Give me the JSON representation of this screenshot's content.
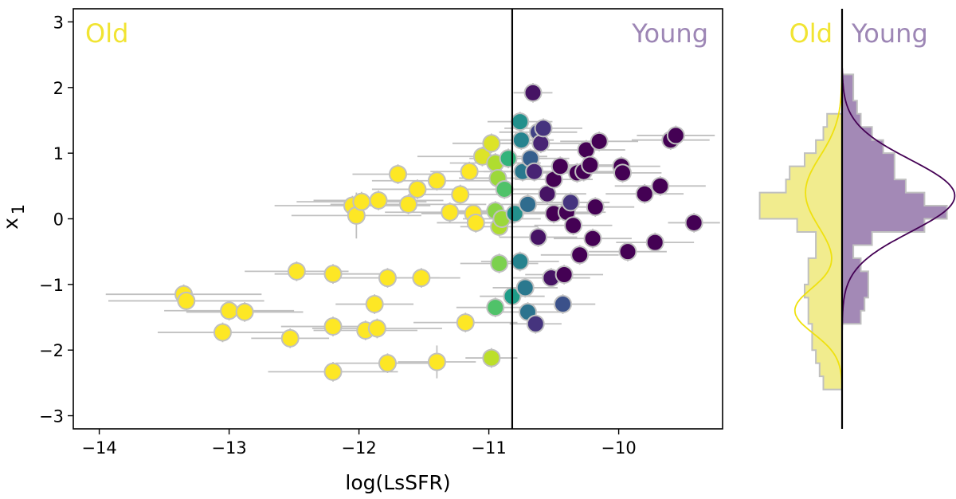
{
  "chart_data": [
    {
      "type": "scatter",
      "title": "",
      "xlabel": "log(LsSFR)",
      "ylabel": "x1",
      "xlim": [
        -14.2,
        -9.2
      ],
      "ylim": [
        -3.2,
        3.2
      ],
      "xticks": [
        -14,
        -13,
        -12,
        -11,
        -10
      ],
      "xtick_labels": [
        "−14",
        "−13",
        "−12",
        "−11",
        "−10"
      ],
      "yticks": [
        3,
        2,
        1,
        0,
        -1,
        -2,
        -3
      ],
      "ytick_labels": [
        "3",
        "2",
        "1",
        "0",
        "−1",
        "−2",
        "−3"
      ],
      "grid": false,
      "threshold_x": -10.82,
      "annotations": {
        "left": "Old",
        "right": "Young"
      },
      "colors": {
        "old": "#f1e432",
        "young": "#9d86b5",
        "young_dark": "#440154",
        "marker_edge": "#c0c0c0",
        "errorbar": "#c0c0c0",
        "colormap": [
          "#fde725",
          "#b5de2b",
          "#6ece58",
          "#35b779",
          "#1f9e89",
          "#26828e",
          "#31688e",
          "#3e4989",
          "#482878",
          "#440154"
        ]
      },
      "points": [
        {
          "x": -13.35,
          "y": -1.15,
          "c": 0.0,
          "xerr": 0.6,
          "yerr": 0.15
        },
        {
          "x": -13.33,
          "y": -1.25,
          "c": 0.0,
          "xerr": 0.6,
          "yerr": 0.15
        },
        {
          "x": -13.05,
          "y": -1.73,
          "c": 0.0,
          "xerr": 0.5,
          "yerr": 0.15
        },
        {
          "x": -13.0,
          "y": -1.4,
          "c": 0.0,
          "xerr": 0.5,
          "yerr": 0.15
        },
        {
          "x": -12.88,
          "y": -1.42,
          "c": 0.0,
          "xerr": 0.45,
          "yerr": 0.15
        },
        {
          "x": -12.53,
          "y": -1.82,
          "c": 0.0,
          "xerr": 0.3,
          "yerr": 0.15
        },
        {
          "x": -12.48,
          "y": -0.8,
          "c": 0.0,
          "xerr": 0.4,
          "yerr": 0.15
        },
        {
          "x": -12.2,
          "y": -0.84,
          "c": 0.0,
          "xerr": 0.45,
          "yerr": 0.15
        },
        {
          "x": -12.2,
          "y": -1.64,
          "c": 0.0,
          "xerr": 0.4,
          "yerr": 0.15
        },
        {
          "x": -12.2,
          "y": -2.33,
          "c": 0.0,
          "xerr": 0.5,
          "yerr": 0.15
        },
        {
          "x": -12.05,
          "y": 0.2,
          "c": 0.0,
          "xerr": 0.6,
          "yerr": 0.15
        },
        {
          "x": -12.02,
          "y": 0.05,
          "c": 0.0,
          "xerr": 0.5,
          "yerr": 0.35
        },
        {
          "x": -11.98,
          "y": 0.26,
          "c": 0.0,
          "xerr": 0.5,
          "yerr": 0.15
        },
        {
          "x": -11.95,
          "y": -1.7,
          "c": 0.0,
          "xerr": 0.4,
          "yerr": 0.15
        },
        {
          "x": -11.88,
          "y": -1.3,
          "c": 0.0,
          "xerr": 0.3,
          "yerr": 0.15
        },
        {
          "x": -11.86,
          "y": -1.67,
          "c": 0.0,
          "xerr": 0.5,
          "yerr": 0.15
        },
        {
          "x": -11.85,
          "y": 0.28,
          "c": 0.0,
          "xerr": 0.5,
          "yerr": 0.15
        },
        {
          "x": -11.78,
          "y": -2.2,
          "c": 0.0,
          "xerr": 0.4,
          "yerr": 0.15
        },
        {
          "x": -11.78,
          "y": -0.9,
          "c": 0.0,
          "xerr": 0.4,
          "yerr": 0.15
        },
        {
          "x": -11.7,
          "y": 0.68,
          "c": 0.0,
          "xerr": 0.35,
          "yerr": 0.15
        },
        {
          "x": -11.62,
          "y": 0.22,
          "c": 0.0,
          "xerr": 0.6,
          "yerr": 0.15
        },
        {
          "x": -11.55,
          "y": 0.45,
          "c": 0.0,
          "xerr": 0.35,
          "yerr": 0.15
        },
        {
          "x": -11.52,
          "y": -0.9,
          "c": 0.0,
          "xerr": 0.3,
          "yerr": 0.15
        },
        {
          "x": -11.4,
          "y": 0.58,
          "c": 0.0,
          "xerr": 0.5,
          "yerr": 0.15
        },
        {
          "x": -11.4,
          "y": -2.18,
          "c": 0.0,
          "xerr": 0.3,
          "yerr": 0.25
        },
        {
          "x": -11.3,
          "y": 0.1,
          "c": 0.0,
          "xerr": 0.5,
          "yerr": 0.15
        },
        {
          "x": -11.22,
          "y": 0.37,
          "c": 0.0,
          "xerr": 0.4,
          "yerr": 0.15
        },
        {
          "x": -11.18,
          "y": -1.58,
          "c": 0.0,
          "xerr": 0.4,
          "yerr": 0.15
        },
        {
          "x": -11.15,
          "y": 0.72,
          "c": 0.0,
          "xerr": 0.3,
          "yerr": 0.15
        },
        {
          "x": -11.12,
          "y": 0.08,
          "c": 0.0,
          "xerr": 0.4,
          "yerr": 0.15
        },
        {
          "x": -11.1,
          "y": -0.06,
          "c": 0.0,
          "xerr": 0.3,
          "yerr": 0.15
        },
        {
          "x": -11.05,
          "y": 0.95,
          "c": 0.05,
          "xerr": 0.5,
          "yerr": 0.15
        },
        {
          "x": -10.98,
          "y": -2.12,
          "c": 0.1,
          "xerr": 0.2,
          "yerr": 0.15
        },
        {
          "x": -10.98,
          "y": 1.15,
          "c": 0.05,
          "xerr": 0.3,
          "yerr": 0.15
        },
        {
          "x": -10.95,
          "y": -1.35,
          "c": 0.28,
          "xerr": 0.3,
          "yerr": 0.15
        },
        {
          "x": -10.95,
          "y": 0.12,
          "c": 0.18,
          "xerr": 0.3,
          "yerr": 0.15
        },
        {
          "x": -10.95,
          "y": 0.85,
          "c": 0.12,
          "xerr": 0.35,
          "yerr": 0.15
        },
        {
          "x": -10.93,
          "y": 0.62,
          "c": 0.15,
          "xerr": 0.3,
          "yerr": 0.15
        },
        {
          "x": -10.92,
          "y": -0.12,
          "c": 0.12,
          "xerr": 0.3,
          "yerr": 0.15
        },
        {
          "x": -10.92,
          "y": -0.68,
          "c": 0.2,
          "xerr": 0.3,
          "yerr": 0.15
        },
        {
          "x": -10.9,
          "y": 0.0,
          "c": 0.15,
          "xerr": 0.3,
          "yerr": 0.15
        },
        {
          "x": -10.88,
          "y": 0.45,
          "c": 0.28,
          "xerr": 0.3,
          "yerr": 0.15
        },
        {
          "x": -10.85,
          "y": 0.92,
          "c": 0.35,
          "xerr": 0.3,
          "yerr": 0.15
        },
        {
          "x": -10.82,
          "y": -1.18,
          "c": 0.45,
          "xerr": 0.25,
          "yerr": 0.15
        },
        {
          "x": -10.8,
          "y": 0.08,
          "c": 0.5,
          "xerr": 0.3,
          "yerr": 0.15
        },
        {
          "x": -10.76,
          "y": -0.65,
          "c": 0.55,
          "xerr": 0.3,
          "yerr": 0.15
        },
        {
          "x": -10.76,
          "y": 1.48,
          "c": 0.5,
          "xerr": 0.25,
          "yerr": 0.15
        },
        {
          "x": -10.75,
          "y": 1.2,
          "c": 0.55,
          "xerr": 0.25,
          "yerr": 0.15
        },
        {
          "x": -10.74,
          "y": 0.72,
          "c": 0.6,
          "xerr": 0.3,
          "yerr": 0.15
        },
        {
          "x": -10.72,
          "y": -1.05,
          "c": 0.6,
          "xerr": 0.25,
          "yerr": 0.15
        },
        {
          "x": -10.7,
          "y": 0.22,
          "c": 0.65,
          "xerr": 0.3,
          "yerr": 0.15
        },
        {
          "x": -10.7,
          "y": -1.42,
          "c": 0.62,
          "xerr": 0.25,
          "yerr": 0.15
        },
        {
          "x": -10.68,
          "y": 0.92,
          "c": 0.7,
          "xerr": 0.3,
          "yerr": 0.15
        },
        {
          "x": -10.66,
          "y": 1.92,
          "c": 0.95,
          "xerr": 0.15,
          "yerr": 0.15
        },
        {
          "x": -10.65,
          "y": 0.72,
          "c": 0.9,
          "xerr": 0.3,
          "yerr": 0.15
        },
        {
          "x": -10.64,
          "y": -1.6,
          "c": 0.85,
          "xerr": 0.2,
          "yerr": 0.15
        },
        {
          "x": -10.62,
          "y": 1.32,
          "c": 0.8,
          "xerr": 0.3,
          "yerr": 0.15
        },
        {
          "x": -10.62,
          "y": -0.28,
          "c": 0.95,
          "xerr": 0.3,
          "yerr": 0.15
        },
        {
          "x": -10.6,
          "y": 1.15,
          "c": 0.9,
          "xerr": 0.3,
          "yerr": 0.15
        },
        {
          "x": -10.58,
          "y": 1.38,
          "c": 0.85,
          "xerr": 0.3,
          "yerr": 0.15
        },
        {
          "x": -10.55,
          "y": 0.38,
          "c": 0.95,
          "xerr": 0.3,
          "yerr": 0.15
        },
        {
          "x": -10.52,
          "y": -0.9,
          "c": 0.95,
          "xerr": 0.3,
          "yerr": 0.15
        },
        {
          "x": -10.5,
          "y": 0.08,
          "c": 1.0,
          "xerr": 0.3,
          "yerr": 0.15
        },
        {
          "x": -10.5,
          "y": 0.6,
          "c": 1.0,
          "xerr": 0.3,
          "yerr": 0.15
        },
        {
          "x": -10.45,
          "y": 0.8,
          "c": 1.0,
          "xerr": 0.3,
          "yerr": 0.15
        },
        {
          "x": -10.43,
          "y": -1.3,
          "c": 0.75,
          "xerr": 0.25,
          "yerr": 0.15
        },
        {
          "x": -10.42,
          "y": -0.85,
          "c": 1.0,
          "xerr": 0.3,
          "yerr": 0.15
        },
        {
          "x": -10.4,
          "y": 0.1,
          "c": 1.0,
          "xerr": 0.3,
          "yerr": 0.15
        },
        {
          "x": -10.37,
          "y": 0.25,
          "c": 0.85,
          "xerr": 0.3,
          "yerr": 0.15
        },
        {
          "x": -10.35,
          "y": -0.1,
          "c": 1.0,
          "xerr": 0.3,
          "yerr": 0.15
        },
        {
          "x": -10.32,
          "y": 0.7,
          "c": 1.0,
          "xerr": 0.3,
          "yerr": 0.15
        },
        {
          "x": -10.3,
          "y": -0.55,
          "c": 1.0,
          "xerr": 0.3,
          "yerr": 0.15
        },
        {
          "x": -10.27,
          "y": 0.72,
          "c": 1.0,
          "xerr": 0.3,
          "yerr": 0.15
        },
        {
          "x": -10.25,
          "y": 1.05,
          "c": 1.0,
          "xerr": 0.3,
          "yerr": 0.15
        },
        {
          "x": -10.22,
          "y": 0.82,
          "c": 1.0,
          "xerr": 0.3,
          "yerr": 0.15
        },
        {
          "x": -10.2,
          "y": -0.3,
          "c": 1.0,
          "xerr": 0.3,
          "yerr": 0.15
        },
        {
          "x": -10.18,
          "y": 0.18,
          "c": 1.0,
          "xerr": 0.3,
          "yerr": 0.15
        },
        {
          "x": -10.15,
          "y": 1.18,
          "c": 1.0,
          "xerr": 0.3,
          "yerr": 0.15
        },
        {
          "x": -9.98,
          "y": 0.8,
          "c": 1.0,
          "xerr": 0.3,
          "yerr": 0.15
        },
        {
          "x": -9.97,
          "y": 0.7,
          "c": 1.0,
          "xerr": 0.3,
          "yerr": 0.15
        },
        {
          "x": -9.93,
          "y": -0.5,
          "c": 1.0,
          "xerr": 0.3,
          "yerr": 0.15
        },
        {
          "x": -9.8,
          "y": 0.38,
          "c": 1.0,
          "xerr": 0.3,
          "yerr": 0.15
        },
        {
          "x": -9.72,
          "y": -0.36,
          "c": 1.0,
          "xerr": 0.3,
          "yerr": 0.15
        },
        {
          "x": -9.68,
          "y": 0.5,
          "c": 1.0,
          "xerr": 0.35,
          "yerr": 0.15
        },
        {
          "x": -9.6,
          "y": 1.2,
          "c": 1.0,
          "xerr": 0.3,
          "yerr": 0.15
        },
        {
          "x": -9.56,
          "y": 1.27,
          "c": 1.0,
          "xerr": 0.3,
          "yerr": 0.15
        },
        {
          "x": -9.42,
          "y": -0.06,
          "c": 1.0,
          "xerr": 0.2,
          "yerr": 0.15
        }
      ]
    },
    {
      "type": "histogram",
      "orientation": "horizontal",
      "annotations": {
        "left": "Old",
        "right": "Young"
      },
      "ylim": [
        -3.2,
        3.2
      ],
      "bin_edges": [
        -2.6,
        -2.4,
        -2.2,
        -2.0,
        -1.8,
        -1.6,
        -1.4,
        -1.2,
        -1.0,
        -0.8,
        -0.6,
        -0.4,
        -0.2,
        0.0,
        0.2,
        0.4,
        0.6,
        0.8,
        1.0,
        1.2,
        1.4,
        1.6,
        1.8,
        2.0,
        2.2
      ],
      "old_density": [
        0.05,
        0.06,
        0.07,
        0.08,
        0.08,
        0.09,
        0.09,
        0.1,
        0.09,
        0.09,
        0.07,
        0.07,
        0.12,
        0.22,
        0.22,
        0.15,
        0.14,
        0.1,
        0.07,
        0.05,
        0.04,
        0.0,
        0.0,
        0.0
      ],
      "young_density": [
        0.0,
        0.0,
        0.0,
        0.0,
        0.0,
        0.05,
        0.06,
        0.07,
        0.07,
        0.05,
        0.03,
        0.08,
        0.22,
        0.28,
        0.22,
        0.17,
        0.14,
        0.14,
        0.11,
        0.08,
        0.05,
        0.04,
        0.03,
        0.03
      ],
      "old_curve": {
        "components": [
          {
            "weight": 0.45,
            "mean": -1.4,
            "sd": 0.35
          },
          {
            "weight": 0.55,
            "mean": 0.4,
            "sd": 0.55
          }
        ]
      },
      "young_curve": {
        "components": [
          {
            "weight": 1.0,
            "mean": 0.35,
            "sd": 0.55
          }
        ]
      }
    }
  ]
}
